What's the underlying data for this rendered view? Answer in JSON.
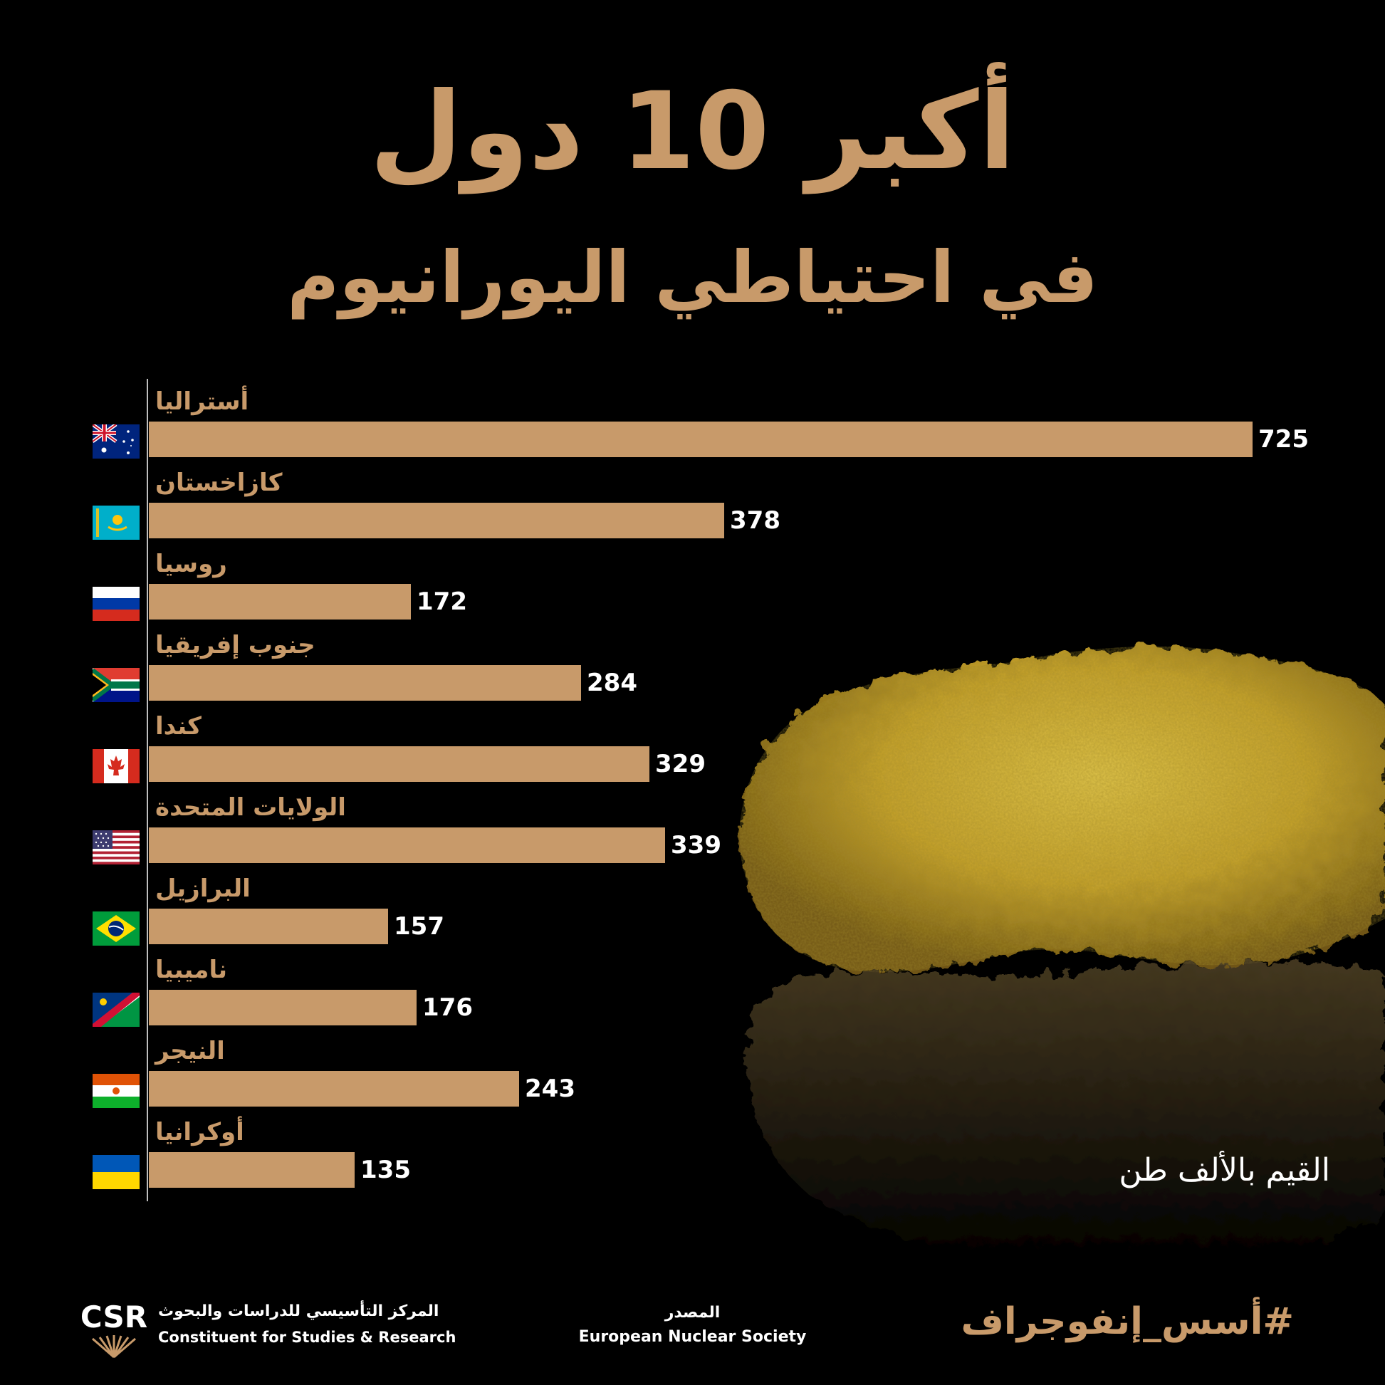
{
  "title": "أكبر 10 دول",
  "subtitle": "في احتياطي اليورانيوم",
  "unit_note": "القيم بالألف طن",
  "colors": {
    "bar": "#c89a6a",
    "background": "#000000",
    "value_text": "#ffffff"
  },
  "chart_data": {
    "type": "bar",
    "orientation": "horizontal",
    "categories": [
      "أستراليا",
      "كازاخستان",
      "روسيا",
      "جنوب إفريقيا",
      "كندا",
      "الولايات المتحدة",
      "البرازيل",
      "ناميبيا",
      "النيجر",
      "أوكرانيا"
    ],
    "values": [
      725,
      378,
      172,
      284,
      329,
      339,
      157,
      176,
      243,
      135
    ],
    "flags": [
      "australia-flag-icon",
      "kazakhstan-flag-icon",
      "russia-flag-icon",
      "south-africa-flag-icon",
      "canada-flag-icon",
      "usa-flag-icon",
      "brazil-flag-icon",
      "namibia-flag-icon",
      "niger-flag-icon",
      "ukraine-flag-icon"
    ],
    "xlim": [
      0,
      725
    ],
    "grid": false,
    "legend": "none"
  },
  "footer": {
    "logo_text": "CSR",
    "org_name_ar": "المركز التأسيسي للدراسات والبحوث",
    "org_name_en": "Constituent for Studies & Research",
    "source_label": "المصدر",
    "source_name": "European Nuclear Society",
    "hashtag": "#أسس_إنفوجراف"
  }
}
